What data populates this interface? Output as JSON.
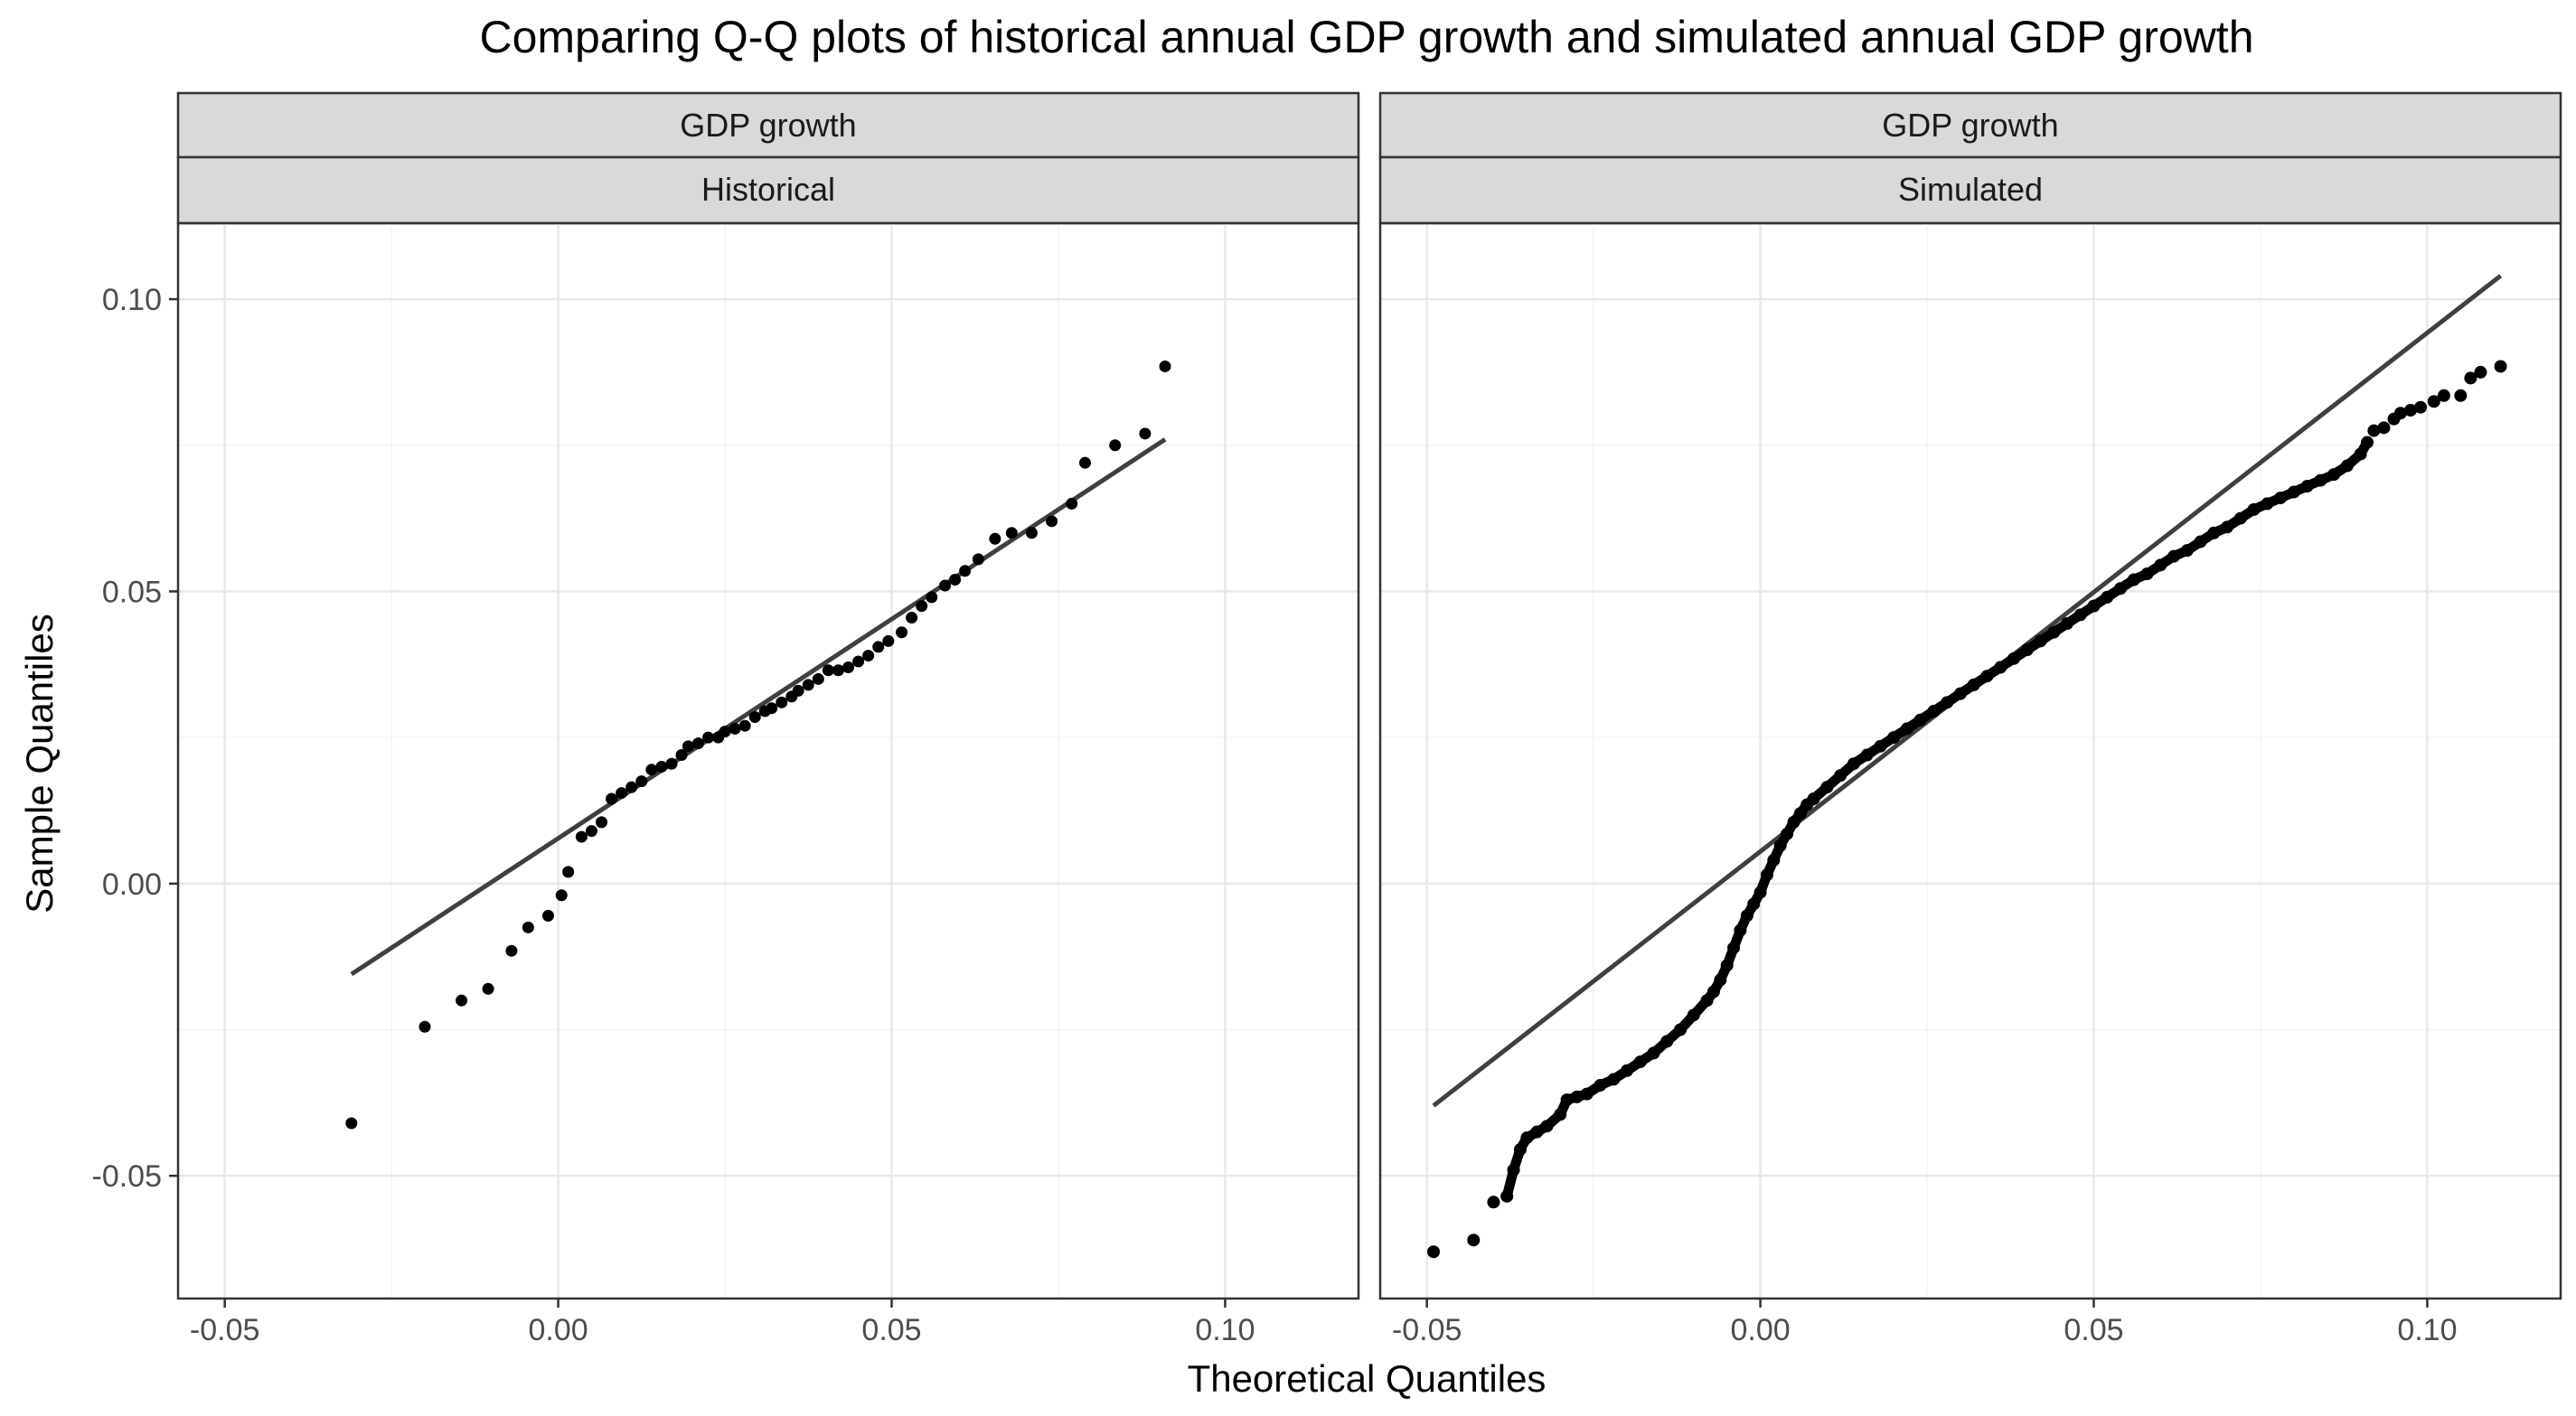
{
  "chart_data": {
    "type": "scatter",
    "title": "Comparing Q-Q plots of historical annual GDP growth and simulated annual GDP growth",
    "xlabel": "Theoretical Quantiles",
    "ylabel": "Sample Quantiles",
    "grid": true,
    "legend": "none",
    "xlim": [
      -0.057,
      0.12
    ],
    "ylim": [
      -0.071,
      0.113
    ],
    "x_ticks": [
      -0.05,
      0.0,
      0.05,
      0.1
    ],
    "x_tick_labels": [
      "-0.05",
      "0.00",
      "0.05",
      "0.10"
    ],
    "y_ticks": [
      -0.05,
      0.0,
      0.05,
      0.1
    ],
    "y_tick_labels": [
      "-0.05",
      "0.00",
      "0.05",
      "0.10"
    ],
    "point_color": "#000000",
    "line_color": "#404040",
    "strip_fill": "#d9d9d9",
    "panels": [
      {
        "strip_top": "GDP growth",
        "strip_bottom": "Historical",
        "reference_line": {
          "x": [
            -0.031,
            0.091
          ],
          "y": [
            -0.0155,
            0.076
          ]
        },
        "points": [
          [
            -0.031,
            -0.041
          ],
          [
            -0.02,
            -0.0245
          ],
          [
            -0.0145,
            -0.02
          ],
          [
            -0.0105,
            -0.018
          ],
          [
            -0.007,
            -0.0115
          ],
          [
            -0.0045,
            -0.0075
          ],
          [
            -0.0015,
            -0.0055
          ],
          [
            0.0005,
            -0.002
          ],
          [
            0.0015,
            0.002
          ],
          [
            0.0035,
            0.008
          ],
          [
            0.005,
            0.009
          ],
          [
            0.0065,
            0.0105
          ],
          [
            0.008,
            0.0145
          ],
          [
            0.0095,
            0.0155
          ],
          [
            0.011,
            0.0165
          ],
          [
            0.0125,
            0.0175
          ],
          [
            0.014,
            0.0195
          ],
          [
            0.0155,
            0.02
          ],
          [
            0.017,
            0.0205
          ],
          [
            0.0185,
            0.022
          ],
          [
            0.0195,
            0.0235
          ],
          [
            0.021,
            0.024
          ],
          [
            0.0225,
            0.025
          ],
          [
            0.024,
            0.025
          ],
          [
            0.025,
            0.026
          ],
          [
            0.0265,
            0.0265
          ],
          [
            0.028,
            0.027
          ],
          [
            0.0295,
            0.0285
          ],
          [
            0.031,
            0.0295
          ],
          [
            0.032,
            0.03
          ],
          [
            0.0335,
            0.031
          ],
          [
            0.035,
            0.032
          ],
          [
            0.036,
            0.033
          ],
          [
            0.0375,
            0.034
          ],
          [
            0.039,
            0.035
          ],
          [
            0.0405,
            0.0365
          ],
          [
            0.042,
            0.0365
          ],
          [
            0.0435,
            0.037
          ],
          [
            0.045,
            0.038
          ],
          [
            0.0465,
            0.039
          ],
          [
            0.048,
            0.0405
          ],
          [
            0.0495,
            0.0415
          ],
          [
            0.0515,
            0.043
          ],
          [
            0.053,
            0.0455
          ],
          [
            0.0545,
            0.0475
          ],
          [
            0.056,
            0.049
          ],
          [
            0.058,
            0.051
          ],
          [
            0.0595,
            0.052
          ],
          [
            0.061,
            0.0535
          ],
          [
            0.063,
            0.0555
          ],
          [
            0.0655,
            0.059
          ],
          [
            0.068,
            0.06
          ],
          [
            0.071,
            0.06
          ],
          [
            0.074,
            0.062
          ],
          [
            0.077,
            0.065
          ],
          [
            0.079,
            0.072
          ],
          [
            0.0835,
            0.075
          ],
          [
            0.088,
            0.077
          ],
          [
            0.091,
            0.0885
          ]
        ]
      },
      {
        "strip_top": "GDP growth",
        "strip_bottom": "Simulated",
        "reference_line": {
          "x": [
            -0.049,
            0.111
          ],
          "y": [
            -0.038,
            0.104
          ]
        },
        "points": [
          [
            -0.049,
            -0.063
          ],
          [
            -0.043,
            -0.061
          ],
          [
            -0.04,
            -0.0545
          ],
          [
            -0.038,
            -0.0535
          ],
          [
            -0.037,
            -0.049
          ],
          [
            -0.036,
            -0.0455
          ],
          [
            -0.035,
            -0.0435
          ],
          [
            -0.0335,
            -0.0425
          ],
          [
            -0.032,
            -0.0415
          ],
          [
            -0.03,
            -0.0395
          ],
          [
            -0.029,
            -0.037
          ],
          [
            -0.0275,
            -0.0365
          ],
          [
            -0.026,
            -0.036
          ],
          [
            -0.024,
            -0.0345
          ],
          [
            -0.022,
            -0.0335
          ],
          [
            -0.02,
            -0.032
          ],
          [
            -0.018,
            -0.0305
          ],
          [
            -0.016,
            -0.029
          ],
          [
            -0.014,
            -0.027
          ],
          [
            -0.012,
            -0.025
          ],
          [
            -0.01,
            -0.0225
          ],
          [
            -0.008,
            -0.02
          ],
          [
            -0.007,
            -0.0185
          ],
          [
            -0.006,
            -0.0165
          ],
          [
            -0.005,
            -0.014
          ],
          [
            -0.004,
            -0.011
          ],
          [
            -0.003,
            -0.008
          ],
          [
            -0.002,
            -0.0055
          ],
          [
            -0.001,
            -0.0035
          ],
          [
            0.0,
            -0.0015
          ],
          [
            0.001,
            0.0015
          ],
          [
            0.002,
            0.004
          ],
          [
            0.003,
            0.0065
          ],
          [
            0.004,
            0.0085
          ],
          [
            0.005,
            0.0105
          ],
          [
            0.006,
            0.012
          ],
          [
            0.007,
            0.0135
          ],
          [
            0.008,
            0.0145
          ],
          [
            0.01,
            0.0165
          ],
          [
            0.012,
            0.0185
          ],
          [
            0.014,
            0.0205
          ],
          [
            0.016,
            0.022
          ],
          [
            0.018,
            0.0235
          ],
          [
            0.02,
            0.025
          ],
          [
            0.022,
            0.0265
          ],
          [
            0.024,
            0.028
          ],
          [
            0.026,
            0.0295
          ],
          [
            0.028,
            0.031
          ],
          [
            0.03,
            0.0325
          ],
          [
            0.032,
            0.034
          ],
          [
            0.034,
            0.0355
          ],
          [
            0.036,
            0.037
          ],
          [
            0.038,
            0.0385
          ],
          [
            0.04,
            0.04
          ],
          [
            0.042,
            0.0415
          ],
          [
            0.044,
            0.043
          ],
          [
            0.046,
            0.0445
          ],
          [
            0.048,
            0.046
          ],
          [
            0.05,
            0.0475
          ],
          [
            0.052,
            0.049
          ],
          [
            0.054,
            0.0505
          ],
          [
            0.056,
            0.052
          ],
          [
            0.058,
            0.053
          ],
          [
            0.06,
            0.0545
          ],
          [
            0.062,
            0.056
          ],
          [
            0.064,
            0.057
          ],
          [
            0.066,
            0.0585
          ],
          [
            0.068,
            0.06
          ],
          [
            0.07,
            0.061
          ],
          [
            0.072,
            0.0625
          ],
          [
            0.074,
            0.064
          ],
          [
            0.076,
            0.065
          ],
          [
            0.078,
            0.066
          ],
          [
            0.08,
            0.067
          ],
          [
            0.082,
            0.068
          ],
          [
            0.084,
            0.069
          ],
          [
            0.086,
            0.07
          ],
          [
            0.088,
            0.0715
          ],
          [
            0.09,
            0.0735
          ],
          [
            0.091,
            0.0755
          ],
          [
            0.092,
            0.0775
          ],
          [
            0.0935,
            0.078
          ],
          [
            0.095,
            0.0795
          ],
          [
            0.096,
            0.0805
          ],
          [
            0.0975,
            0.081
          ],
          [
            0.099,
            0.0815
          ],
          [
            0.101,
            0.0825
          ],
          [
            0.1025,
            0.0835
          ],
          [
            0.105,
            0.0835
          ],
          [
            0.1065,
            0.0865
          ],
          [
            0.108,
            0.0875
          ],
          [
            0.111,
            0.0885
          ]
        ]
      }
    ]
  }
}
